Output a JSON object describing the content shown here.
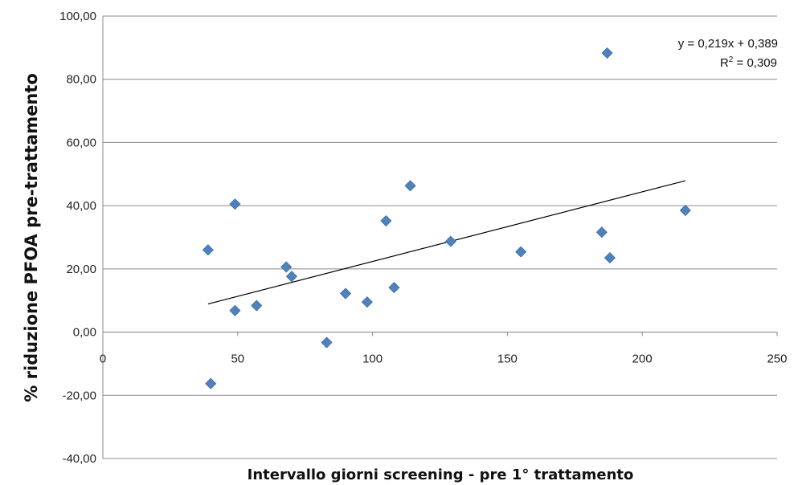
{
  "chart_data": {
    "type": "scatter",
    "xlabel": "Intervallo  giorni screening - pre 1° trattamento",
    "ylabel": "% riduzione PFOA pre-trattamento",
    "xlim": [
      0,
      250
    ],
    "ylim": [
      -40,
      100
    ],
    "xticks": [
      "0",
      "50",
      "100",
      "150",
      "200",
      "250"
    ],
    "yticks": [
      "100,00",
      "80,00",
      "60,00",
      "40,00",
      "20,00",
      "0,00",
      "-20,00",
      "-40,00"
    ],
    "grid": "horizontal",
    "point_color": "#4F81BD",
    "series": [
      {
        "x": [
          39,
          40,
          49,
          49,
          57,
          68,
          70,
          83,
          90,
          98,
          105,
          108,
          114,
          129,
          155,
          185,
          187,
          188,
          216
        ],
        "y": [
          26.0,
          -16.3,
          40.5,
          6.8,
          8.4,
          20.6,
          17.6,
          -3.3,
          12.2,
          9.5,
          35.2,
          14.1,
          46.3,
          28.7,
          25.4,
          31.6,
          88.3,
          23.5,
          38.5
        ]
      }
    ],
    "trendline": {
      "x": [
        39,
        216
      ],
      "y": [
        8.9,
        47.9
      ],
      "equation": "y = 0,219x + 0,389",
      "r2_label": "R",
      "r2_exp": "2",
      "r2_value": " = 0,309"
    }
  }
}
